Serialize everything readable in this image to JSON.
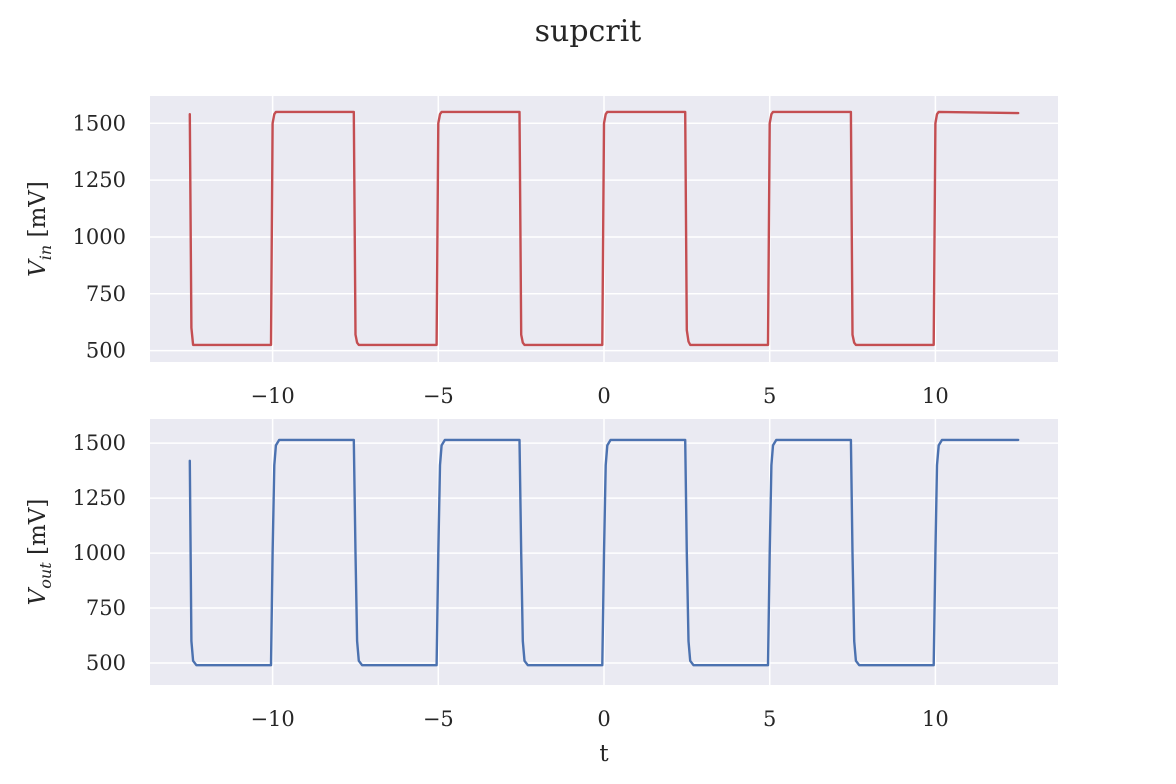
{
  "figure": {
    "title": "supcrit"
  },
  "chart_data": [
    {
      "type": "line",
      "title": "",
      "xlabel": "",
      "ylabel": "V_in [mV]",
      "ylabel_main": "V",
      "ylabel_sub": "in",
      "ylabel_unit": " [mV]",
      "xlim": [
        -13.7,
        13.7
      ],
      "ylim": [
        450,
        1620
      ],
      "xticks": [
        -10,
        -5,
        0,
        5,
        10
      ],
      "xtick_labels": [
        "−10",
        "−5",
        "0",
        "5",
        "10"
      ],
      "yticks": [
        500,
        750,
        1000,
        1250,
        1500
      ],
      "ytick_labels": [
        "500",
        "750",
        "1000",
        "1250",
        "1500"
      ],
      "grid": true,
      "color": "#c44e52",
      "series": [
        {
          "x": [
            -12.5,
            -12.45,
            -12.4,
            -10.05,
            -10.0,
            -9.95,
            -9.9,
            -7.55,
            -7.5,
            -7.45,
            -7.4,
            -5.05,
            -5.0,
            -4.95,
            -4.9,
            -2.55,
            -2.5,
            -2.45,
            -2.4,
            -0.05,
            0.0,
            0.05,
            0.1,
            2.45,
            2.5,
            2.55,
            2.6,
            4.95,
            5.0,
            5.05,
            5.1,
            7.45,
            7.5,
            7.55,
            7.6,
            9.95,
            10.0,
            10.05,
            10.1,
            12.5
          ],
          "y": [
            1540,
            600,
            525,
            525,
            1500,
            1540,
            1550,
            1550,
            570,
            535,
            525,
            525,
            1500,
            1540,
            1550,
            1550,
            570,
            535,
            525,
            525,
            1500,
            1540,
            1550,
            1550,
            590,
            540,
            525,
            525,
            1500,
            1540,
            1550,
            1550,
            570,
            535,
            525,
            525,
            1500,
            1540,
            1550,
            1545
          ]
        }
      ]
    },
    {
      "type": "line",
      "title": "",
      "xlabel": "t",
      "ylabel": "V_out [mV]",
      "ylabel_main": "V",
      "ylabel_sub": "out",
      "ylabel_unit": " [mV]",
      "xlim": [
        -13.7,
        13.7
      ],
      "ylim": [
        400,
        1610
      ],
      "xticks": [
        -10,
        -5,
        0,
        5,
        10
      ],
      "xtick_labels": [
        "−10",
        "−5",
        "0",
        "5",
        "10"
      ],
      "yticks": [
        500,
        750,
        1000,
        1250,
        1500
      ],
      "ytick_labels": [
        "500",
        "750",
        "1000",
        "1250",
        "1500"
      ],
      "grid": true,
      "color": "#4c72b0",
      "series": [
        {
          "x": [
            -12.5,
            -12.45,
            -12.4,
            -12.3,
            -10.05,
            -10.0,
            -9.95,
            -9.9,
            -9.8,
            -7.55,
            -7.5,
            -7.45,
            -7.4,
            -7.3,
            -5.05,
            -5.0,
            -4.95,
            -4.9,
            -4.8,
            -2.55,
            -2.5,
            -2.45,
            -2.4,
            -2.3,
            -0.05,
            0.0,
            0.05,
            0.1,
            0.2,
            2.45,
            2.5,
            2.55,
            2.6,
            2.7,
            4.95,
            5.0,
            5.05,
            5.1,
            5.2,
            7.45,
            7.5,
            7.55,
            7.6,
            7.7,
            9.95,
            10.0,
            10.05,
            10.1,
            10.2,
            12.5
          ],
          "y": [
            1420,
            600,
            510,
            490,
            490,
            1000,
            1400,
            1490,
            1515,
            1515,
            1000,
            600,
            510,
            490,
            490,
            1000,
            1400,
            1490,
            1515,
            1515,
            1000,
            600,
            510,
            490,
            490,
            1000,
            1400,
            1490,
            1515,
            1515,
            1000,
            600,
            510,
            490,
            490,
            1000,
            1400,
            1490,
            1515,
            1515,
            1000,
            600,
            510,
            490,
            490,
            1000,
            1400,
            1490,
            1515,
            1515
          ]
        }
      ]
    }
  ]
}
